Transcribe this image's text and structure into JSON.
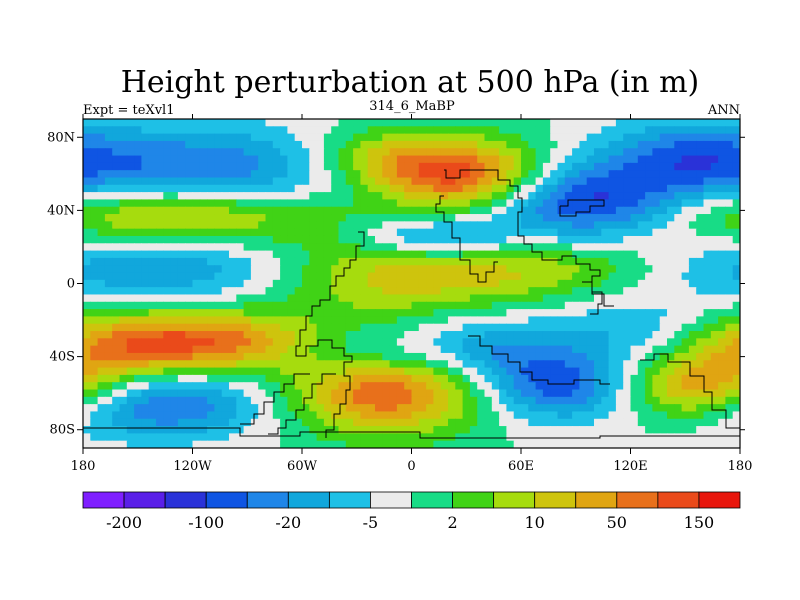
{
  "chart_data": {
    "type": "heatmap",
    "title": "Height perturbation at 500 hPa (in m)",
    "subtitle_left": "Expt = teXvl1",
    "subtitle_center": "314_6_MaBP",
    "subtitle_right": "ANN",
    "x_range": [
      -180,
      180
    ],
    "y_range": [
      -90,
      90
    ],
    "x_ticks": [
      {
        "value": -180,
        "label": "180"
      },
      {
        "value": -120,
        "label": "120W"
      },
      {
        "value": -60,
        "label": "60W"
      },
      {
        "value": 0,
        "label": "0"
      },
      {
        "value": 60,
        "label": "60E"
      },
      {
        "value": 120,
        "label": "120E"
      },
      {
        "value": 180,
        "label": "180"
      }
    ],
    "y_ticks": [
      {
        "value": 80,
        "label": "80N"
      },
      {
        "value": 40,
        "label": "40N"
      },
      {
        "value": 0,
        "label": "0"
      },
      {
        "value": -40,
        "label": "40S"
      },
      {
        "value": -80,
        "label": "80S"
      }
    ],
    "colorbar": {
      "colors": [
        "#7f1fff",
        "#5a1fe8",
        "#2a32d8",
        "#0f55e3",
        "#1f86e8",
        "#11a7dc",
        "#1ec0e6",
        "#ebebeb",
        "#18dc86",
        "#40d316",
        "#a6dc0e",
        "#cec40d",
        "#e0a512",
        "#e8701b",
        "#ea4a1a",
        "#e8160c"
      ],
      "labels": [
        {
          "boundary": 1,
          "label": "-200"
        },
        {
          "boundary": 3,
          "label": "-100"
        },
        {
          "boundary": 5,
          "label": "-20"
        },
        {
          "boundary": 7,
          "label": "-5"
        },
        {
          "boundary": 9,
          "label": "2"
        },
        {
          "boundary": 11,
          "label": "10"
        },
        {
          "boundary": 13,
          "label": "50"
        },
        {
          "boundary": 15,
          "label": "150"
        }
      ]
    },
    "field_centers": [
      {
        "lon": -120,
        "lat": 60,
        "level": 3.2,
        "sx": 70,
        "sy": 18
      },
      {
        "lon": -130,
        "lat": 38,
        "level": 12.5,
        "sx": 60,
        "sy": 12
      },
      {
        "lon": -140,
        "lat": 8,
        "level": 4.5,
        "sx": 55,
        "sy": 14
      },
      {
        "lon": -160,
        "lat": -35,
        "level": 12.3,
        "sx": 40,
        "sy": 14
      },
      {
        "lon": -100,
        "lat": -32,
        "level": 11.8,
        "sx": 40,
        "sy": 12
      },
      {
        "lon": -140,
        "lat": -65,
        "level": 3.0,
        "sx": 45,
        "sy": 14
      },
      {
        "lon": -15,
        "lat": -60,
        "level": 13.4,
        "sx": 38,
        "sy": 16
      },
      {
        "lon": -30,
        "lat": -38,
        "level": 5.5,
        "sx": 30,
        "sy": 10
      },
      {
        "lon": 30,
        "lat": 58,
        "level": 14.2,
        "sx": 32,
        "sy": 14
      },
      {
        "lon": -15,
        "lat": 68,
        "level": 11.0,
        "sx": 30,
        "sy": 12
      },
      {
        "lon": 90,
        "lat": 45,
        "level": 2.2,
        "sx": 40,
        "sy": 14
      },
      {
        "lon": 150,
        "lat": 70,
        "level": 4.5,
        "sx": 35,
        "sy": 14
      },
      {
        "lon": 10,
        "lat": 25,
        "level": 4.0,
        "sx": 30,
        "sy": 8
      },
      {
        "lon": -20,
        "lat": 5,
        "level": 10.5,
        "sx": 40,
        "sy": 18
      },
      {
        "lon": 50,
        "lat": 5,
        "level": 10.0,
        "sx": 40,
        "sy": 12
      },
      {
        "lon": 80,
        "lat": -55,
        "level": 2.8,
        "sx": 30,
        "sy": 14
      },
      {
        "lon": 40,
        "lat": -35,
        "level": 5.0,
        "sx": 30,
        "sy": 12
      },
      {
        "lon": 125,
        "lat": -25,
        "level": 5.5,
        "sx": 35,
        "sy": 12
      },
      {
        "lon": 160,
        "lat": -58,
        "level": 12.6,
        "sx": 30,
        "sy": 12
      },
      {
        "lon": 100,
        "lat": 10,
        "level": 8.5,
        "sx": 30,
        "sy": 8
      }
    ]
  }
}
